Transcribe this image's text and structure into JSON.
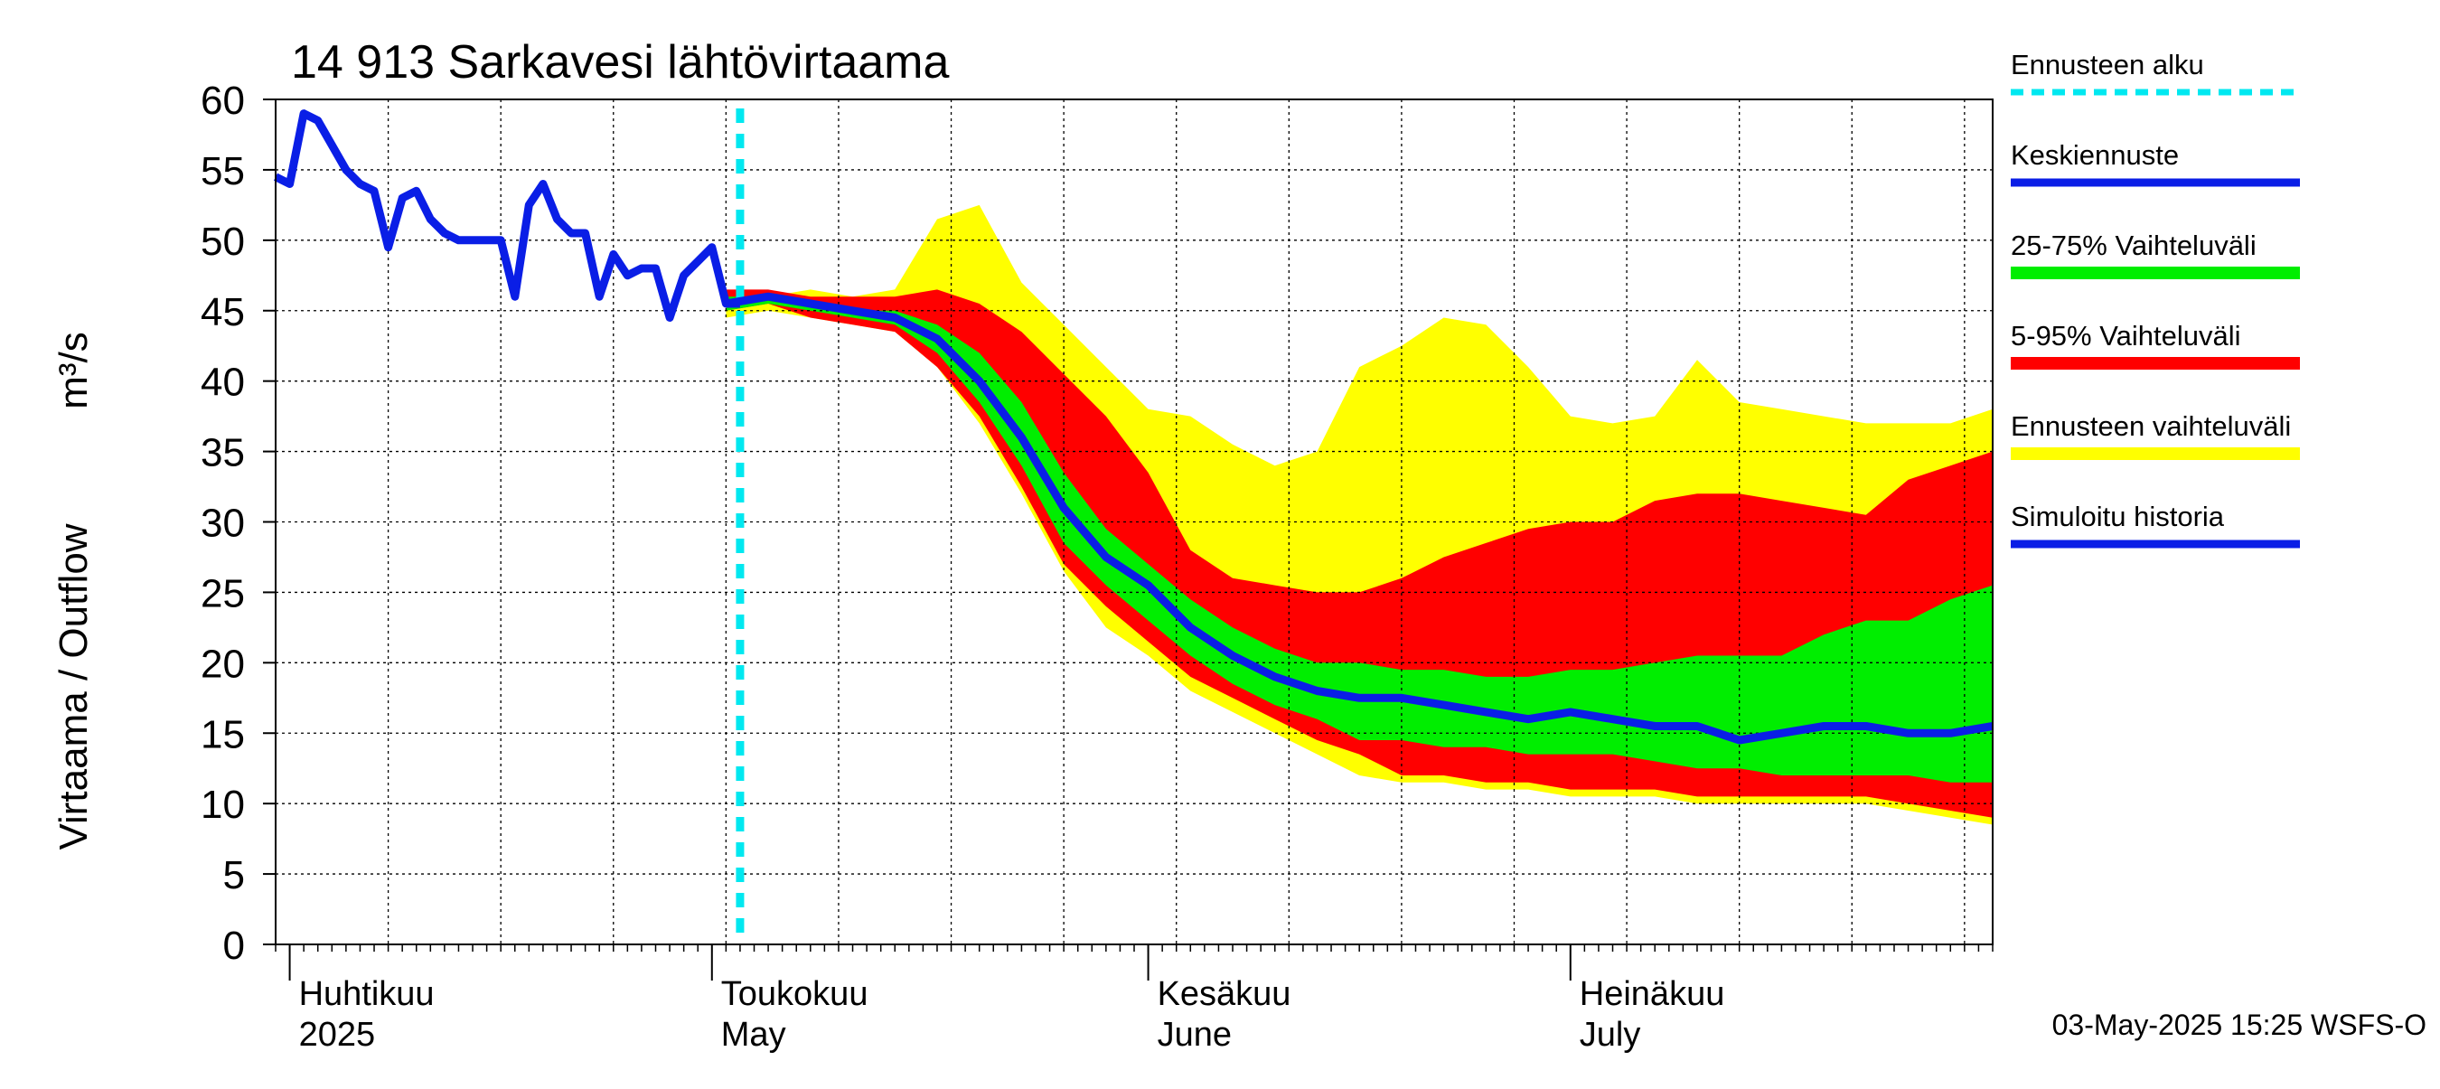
{
  "chart_data": {
    "type": "area",
    "title": "14 913 Sarkavesi lähtövirtaama",
    "ylabel_fi": "Virtaama / Outflow",
    "ylabel_unit": "m³/s",
    "ylim": [
      0,
      60
    ],
    "yticks": [
      "0",
      "5",
      "10",
      "15",
      "20",
      "25",
      "30",
      "35",
      "40",
      "45",
      "50",
      "55",
      "60"
    ],
    "xlim": [
      "2025-03-31",
      "2025-07-31"
    ],
    "grid": true,
    "x_months": [
      {
        "fi": "Huhtikuu",
        "en": "2025",
        "date": "2025-04-01"
      },
      {
        "fi": "Toukokuu",
        "en": "May",
        "date": "2025-05-01"
      },
      {
        "fi": "Kesäkuu",
        "en": "June",
        "date": "2025-06-01"
      },
      {
        "fi": "Heinäkuu",
        "en": "July",
        "date": "2025-07-01"
      }
    ],
    "forecast_start": "2025-05-03",
    "legend": [
      {
        "label": "Ennusteen alku",
        "color": "#00e8f0",
        "style": "dashed"
      },
      {
        "label": "Keskiennuste",
        "color": "#0a1ee6",
        "style": "line"
      },
      {
        "label": "25-75% Vaihteluväli",
        "color": "#00ee00",
        "style": "band"
      },
      {
        "label": "5-95% Vaihteluväli",
        "color": "#ff0000",
        "style": "band"
      },
      {
        "label": "Ennusteen vaihteluväli",
        "color": "#ffff00",
        "style": "band"
      },
      {
        "label": "Simuloitu historia",
        "color": "#0a1ee6",
        "style": "line"
      }
    ],
    "timestamp": "03-May-2025 15:25 WSFS-O",
    "history": {
      "name": "Simuloitu historia",
      "x": [
        "2025-03-31",
        "2025-04-01",
        "2025-04-02",
        "2025-04-03",
        "2025-04-05",
        "2025-04-06",
        "2025-04-07",
        "2025-04-08",
        "2025-04-09",
        "2025-04-10",
        "2025-04-11",
        "2025-04-12",
        "2025-04-13",
        "2025-04-14",
        "2025-04-16",
        "2025-04-17",
        "2025-04-18",
        "2025-04-19",
        "2025-04-20",
        "2025-04-21",
        "2025-04-22",
        "2025-04-23",
        "2025-04-24",
        "2025-04-25",
        "2025-04-26",
        "2025-04-27",
        "2025-04-28",
        "2025-04-29",
        "2025-04-30",
        "2025-05-01",
        "2025-05-02",
        "2025-05-03"
      ],
      "y": [
        54.5,
        54,
        59,
        58.5,
        55,
        54,
        53.5,
        49.5,
        53,
        53.5,
        51.5,
        50.5,
        50,
        50,
        50,
        46,
        52.5,
        54,
        51.5,
        50.5,
        50.5,
        46,
        49,
        47.5,
        48,
        48,
        44.5,
        47.5,
        48.5,
        49.5,
        45.5,
        45.5
      ]
    },
    "forecast": {
      "x": [
        "2025-05-02",
        "2025-05-05",
        "2025-05-08",
        "2025-05-11",
        "2025-05-14",
        "2025-05-17",
        "2025-05-20",
        "2025-05-23",
        "2025-05-26",
        "2025-05-29",
        "2025-06-01",
        "2025-06-04",
        "2025-06-07",
        "2025-06-10",
        "2025-06-13",
        "2025-06-16",
        "2025-06-19",
        "2025-06-22",
        "2025-06-25",
        "2025-06-28",
        "2025-07-01",
        "2025-07-04",
        "2025-07-07",
        "2025-07-10",
        "2025-07-13",
        "2025-07-16",
        "2025-07-19",
        "2025-07-22",
        "2025-07-25",
        "2025-07-28",
        "2025-07-31"
      ],
      "median": [
        45.5,
        46,
        45.5,
        45,
        44.5,
        43,
        40,
        36,
        31,
        27.5,
        25.5,
        22.5,
        20.5,
        19,
        18,
        17.5,
        17.5,
        17,
        16.5,
        16,
        16.5,
        16,
        15.5,
        15.5,
        14.5,
        15,
        15.5,
        15.5,
        15,
        15,
        15.5
      ],
      "p25": [
        45,
        45.5,
        45,
        44.5,
        44,
        42,
        38.5,
        34,
        28.5,
        25.5,
        23,
        20.5,
        18.5,
        17,
        16,
        14.5,
        14.5,
        14,
        14,
        13.5,
        13.5,
        13.5,
        13,
        12.5,
        12.5,
        12,
        12,
        12,
        12,
        11.5,
        11.5
      ],
      "p75": [
        46,
        46,
        45.5,
        45,
        45,
        44,
        42,
        38.5,
        33.5,
        29.5,
        27,
        24.5,
        22.5,
        21,
        20,
        20,
        19.5,
        19.5,
        19,
        19,
        19.5,
        19.5,
        20,
        20.5,
        20.5,
        20.5,
        22,
        23,
        23,
        24.5,
        25.5
      ],
      "p05": [
        45,
        45.5,
        44.5,
        44,
        43.5,
        41,
        37.5,
        32.5,
        27,
        24,
        21.5,
        19,
        17.5,
        16,
        14.5,
        13.5,
        12,
        12,
        11.5,
        11.5,
        11,
        11,
        11,
        10.5,
        10.5,
        10.5,
        10.5,
        10.5,
        10,
        9.5,
        9
      ],
      "p95": [
        46.5,
        46.5,
        46,
        46,
        46,
        46.5,
        45.5,
        43.5,
        40.5,
        37.5,
        33.5,
        28,
        26,
        25.5,
        25,
        25,
        26,
        27.5,
        28.5,
        29.5,
        30,
        30,
        31.5,
        32,
        32,
        31.5,
        31,
        30.5,
        33,
        34,
        35
      ],
      "min": [
        44.5,
        45,
        44.5,
        44,
        43.5,
        41,
        37,
        32,
        26.5,
        22.5,
        20.5,
        18,
        16.5,
        15,
        13.5,
        12,
        11.5,
        11.5,
        11,
        11,
        10.5,
        10.5,
        10.5,
        10,
        10,
        10,
        10,
        10,
        9.5,
        9,
        8.5
      ],
      "max": [
        45,
        46,
        46.5,
        46,
        46.5,
        51.5,
        52.5,
        47,
        44,
        41,
        38,
        37.5,
        35.5,
        34,
        35,
        41,
        42.5,
        44.5,
        44,
        41,
        37.5,
        37,
        37.5,
        41.5,
        38.5,
        38,
        37.5,
        37,
        37,
        37,
        38
      ]
    }
  }
}
